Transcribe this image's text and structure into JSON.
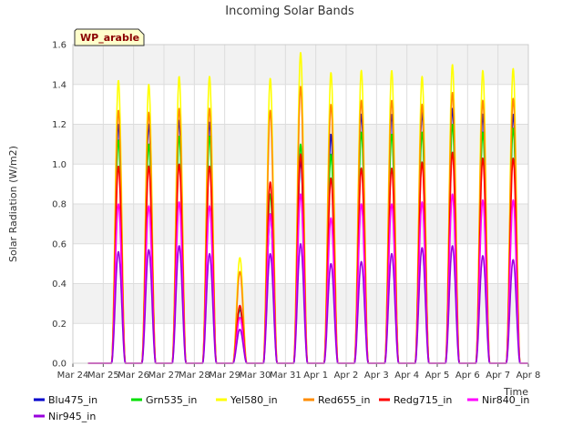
{
  "chart_data": {
    "type": "line",
    "title": "Incoming Solar Bands",
    "xlabel": "Time",
    "ylabel": "Solar Radiation (W/m2)",
    "ylim": [
      0,
      1.6
    ],
    "yticks": [
      "0.0",
      "0.2",
      "0.4",
      "0.6",
      "0.8",
      "1.0",
      "1.2",
      "1.4",
      "1.6"
    ],
    "xlim": [
      "2024-03-24",
      "2024-04-08"
    ],
    "xticks": [
      "Mar 24",
      "Mar 25",
      "Mar 26",
      "Mar 27",
      "Mar 28",
      "Mar 29",
      "Mar 30",
      "Mar 31",
      "Apr 1",
      "Apr 2",
      "Apr 3",
      "Apr 4",
      "Apr 5",
      "Apr 6",
      "Apr 7",
      "Apr 8"
    ],
    "grid": true,
    "legend_position": "bottom",
    "badge": "WP_arable",
    "days": [
      "2024-03-25",
      "2024-03-26",
      "2024-03-27",
      "2024-03-28",
      "2024-03-29",
      "2024-03-30",
      "2024-03-31",
      "2024-04-01",
      "2024-04-02",
      "2024-04-03",
      "2024-04-04",
      "2024-04-05",
      "2024-04-06",
      "2024-04-07"
    ],
    "series": [
      {
        "name": "Blu475_in",
        "color": "#0000cc",
        "daily_peak": [
          1.2,
          1.2,
          1.22,
          1.21,
          0.27,
          0.75,
          1.02,
          1.15,
          1.25,
          1.25,
          1.26,
          1.28,
          1.25,
          1.25
        ]
      },
      {
        "name": "Grn535_in",
        "color": "#00e000",
        "daily_peak": [
          1.12,
          1.1,
          1.14,
          1.14,
          0.28,
          0.85,
          1.1,
          1.05,
          1.16,
          1.15,
          1.16,
          1.2,
          1.16,
          1.18
        ]
      },
      {
        "name": "Yel580_in",
        "color": "#ffff00",
        "daily_peak": [
          1.42,
          1.4,
          1.44,
          1.44,
          0.53,
          1.43,
          1.56,
          1.46,
          1.47,
          1.47,
          1.44,
          1.5,
          1.47,
          1.48
        ]
      },
      {
        "name": "Red655_in",
        "color": "#ff8c00",
        "daily_peak": [
          1.27,
          1.26,
          1.28,
          1.28,
          0.46,
          1.27,
          1.39,
          1.3,
          1.32,
          1.32,
          1.3,
          1.36,
          1.32,
          1.33
        ]
      },
      {
        "name": "Redg715_in",
        "color": "#ff0000",
        "daily_peak": [
          0.99,
          0.99,
          1.0,
          0.99,
          0.29,
          0.91,
          1.05,
          0.93,
          0.98,
          0.98,
          1.01,
          1.06,
          1.03,
          1.03
        ]
      },
      {
        "name": "Nir840_in",
        "color": "#ff00ff",
        "daily_peak": [
          0.8,
          0.79,
          0.81,
          0.79,
          0.23,
          0.75,
          0.85,
          0.73,
          0.8,
          0.8,
          0.81,
          0.85,
          0.82,
          0.82
        ]
      },
      {
        "name": "Nir945_in",
        "color": "#9900dd",
        "daily_peak": [
          0.56,
          0.57,
          0.59,
          0.55,
          0.17,
          0.55,
          0.6,
          0.5,
          0.51,
          0.55,
          0.58,
          0.59,
          0.54,
          0.52
        ]
      }
    ]
  }
}
